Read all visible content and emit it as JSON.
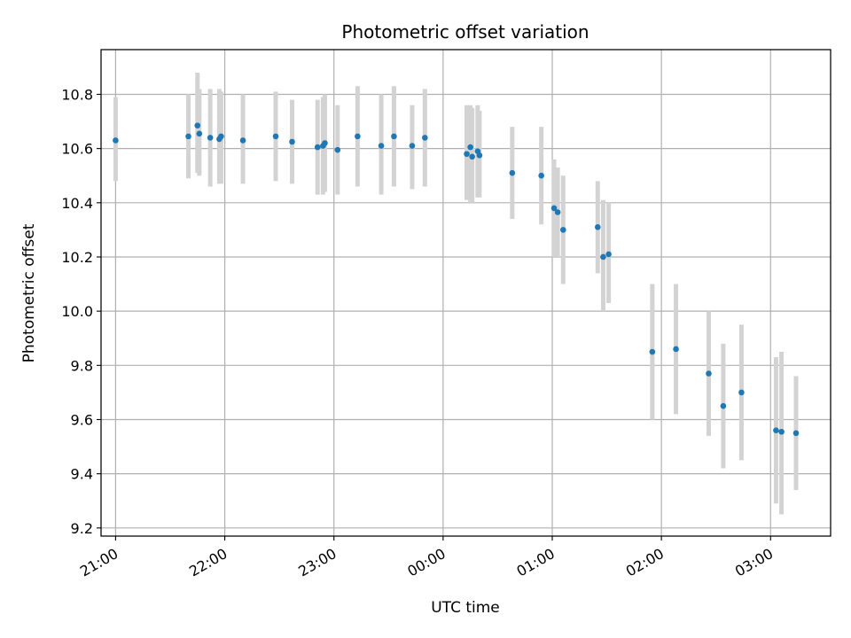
{
  "chart_data": {
    "type": "scatter",
    "title": "Photometric offset variation",
    "xlabel": "UTC time",
    "ylabel": "Photometric offset",
    "x_ticks": [
      "21:00",
      "22:00",
      "23:00",
      "00:00",
      "01:00",
      "02:00",
      "03:00"
    ],
    "y_ticks": [
      "9.2",
      "9.4",
      "9.6",
      "9.8",
      "10.0",
      "10.2",
      "10.4",
      "10.6",
      "10.8"
    ],
    "xlim": [
      "20:52",
      "03:33"
    ],
    "ylim": [
      9.17,
      10.965
    ],
    "grid": true,
    "error_bar_color": "#d3d3d3",
    "marker_color": "#1f77b4",
    "points": [
      {
        "t": "21:00",
        "y": 10.63,
        "lo": 10.48,
        "hi": 10.79
      },
      {
        "t": "21:40",
        "y": 10.645,
        "lo": 10.49,
        "hi": 10.8
      },
      {
        "t": "21:45",
        "y": 10.685,
        "lo": 10.51,
        "hi": 10.88
      },
      {
        "t": "21:46",
        "y": 10.655,
        "lo": 10.5,
        "hi": 10.82
      },
      {
        "t": "21:52",
        "y": 10.64,
        "lo": 10.46,
        "hi": 10.82
      },
      {
        "t": "21:57",
        "y": 10.635,
        "lo": 10.47,
        "hi": 10.82
      },
      {
        "t": "21:58",
        "y": 10.645,
        "lo": 10.47,
        "hi": 10.81
      },
      {
        "t": "22:10",
        "y": 10.63,
        "lo": 10.47,
        "hi": 10.8
      },
      {
        "t": "22:28",
        "y": 10.645,
        "lo": 10.48,
        "hi": 10.81
      },
      {
        "t": "22:37",
        "y": 10.625,
        "lo": 10.47,
        "hi": 10.78
      },
      {
        "t": "22:51",
        "y": 10.605,
        "lo": 10.43,
        "hi": 10.78
      },
      {
        "t": "22:54",
        "y": 10.61,
        "lo": 10.43,
        "hi": 10.79
      },
      {
        "t": "22:55",
        "y": 10.62,
        "lo": 10.44,
        "hi": 10.8
      },
      {
        "t": "23:02",
        "y": 10.595,
        "lo": 10.43,
        "hi": 10.76
      },
      {
        "t": "23:13",
        "y": 10.645,
        "lo": 10.46,
        "hi": 10.83
      },
      {
        "t": "23:26",
        "y": 10.61,
        "lo": 10.43,
        "hi": 10.8
      },
      {
        "t": "23:33",
        "y": 10.645,
        "lo": 10.46,
        "hi": 10.83
      },
      {
        "t": "23:43",
        "y": 10.61,
        "lo": 10.45,
        "hi": 10.76
      },
      {
        "t": "23:50",
        "y": 10.64,
        "lo": 10.46,
        "hi": 10.82
      },
      {
        "t": "00:13",
        "y": 10.58,
        "lo": 10.41,
        "hi": 10.76
      },
      {
        "t": "00:15",
        "y": 10.605,
        "lo": 10.4,
        "hi": 10.76
      },
      {
        "t": "00:16",
        "y": 10.57,
        "lo": 10.4,
        "hi": 10.75
      },
      {
        "t": "00:19",
        "y": 10.59,
        "lo": 10.42,
        "hi": 10.76
      },
      {
        "t": "00:20",
        "y": 10.575,
        "lo": 10.42,
        "hi": 10.74
      },
      {
        "t": "00:38",
        "y": 10.51,
        "lo": 10.34,
        "hi": 10.68
      },
      {
        "t": "00:54",
        "y": 10.5,
        "lo": 10.32,
        "hi": 10.68
      },
      {
        "t": "01:01",
        "y": 10.38,
        "lo": 10.2,
        "hi": 10.56
      },
      {
        "t": "01:03",
        "y": 10.365,
        "lo": 10.2,
        "hi": 10.53
      },
      {
        "t": "01:06",
        "y": 10.3,
        "lo": 10.1,
        "hi": 10.5
      },
      {
        "t": "01:25",
        "y": 10.31,
        "lo": 10.14,
        "hi": 10.48
      },
      {
        "t": "01:28",
        "y": 10.2,
        "lo": 10.0,
        "hi": 10.41
      },
      {
        "t": "01:31",
        "y": 10.21,
        "lo": 10.03,
        "hi": 10.4
      },
      {
        "t": "01:55",
        "y": 9.85,
        "lo": 9.6,
        "hi": 10.1
      },
      {
        "t": "02:08",
        "y": 9.86,
        "lo": 9.62,
        "hi": 10.1
      },
      {
        "t": "02:26",
        "y": 9.77,
        "lo": 9.54,
        "hi": 10.0
      },
      {
        "t": "02:34",
        "y": 9.65,
        "lo": 9.42,
        "hi": 9.88
      },
      {
        "t": "02:44",
        "y": 9.7,
        "lo": 9.45,
        "hi": 9.95
      },
      {
        "t": "03:03",
        "y": 9.56,
        "lo": 9.29,
        "hi": 9.83
      },
      {
        "t": "03:06",
        "y": 9.555,
        "lo": 9.25,
        "hi": 9.85
      },
      {
        "t": "03:14",
        "y": 9.55,
        "lo": 9.34,
        "hi": 9.76
      }
    ]
  }
}
